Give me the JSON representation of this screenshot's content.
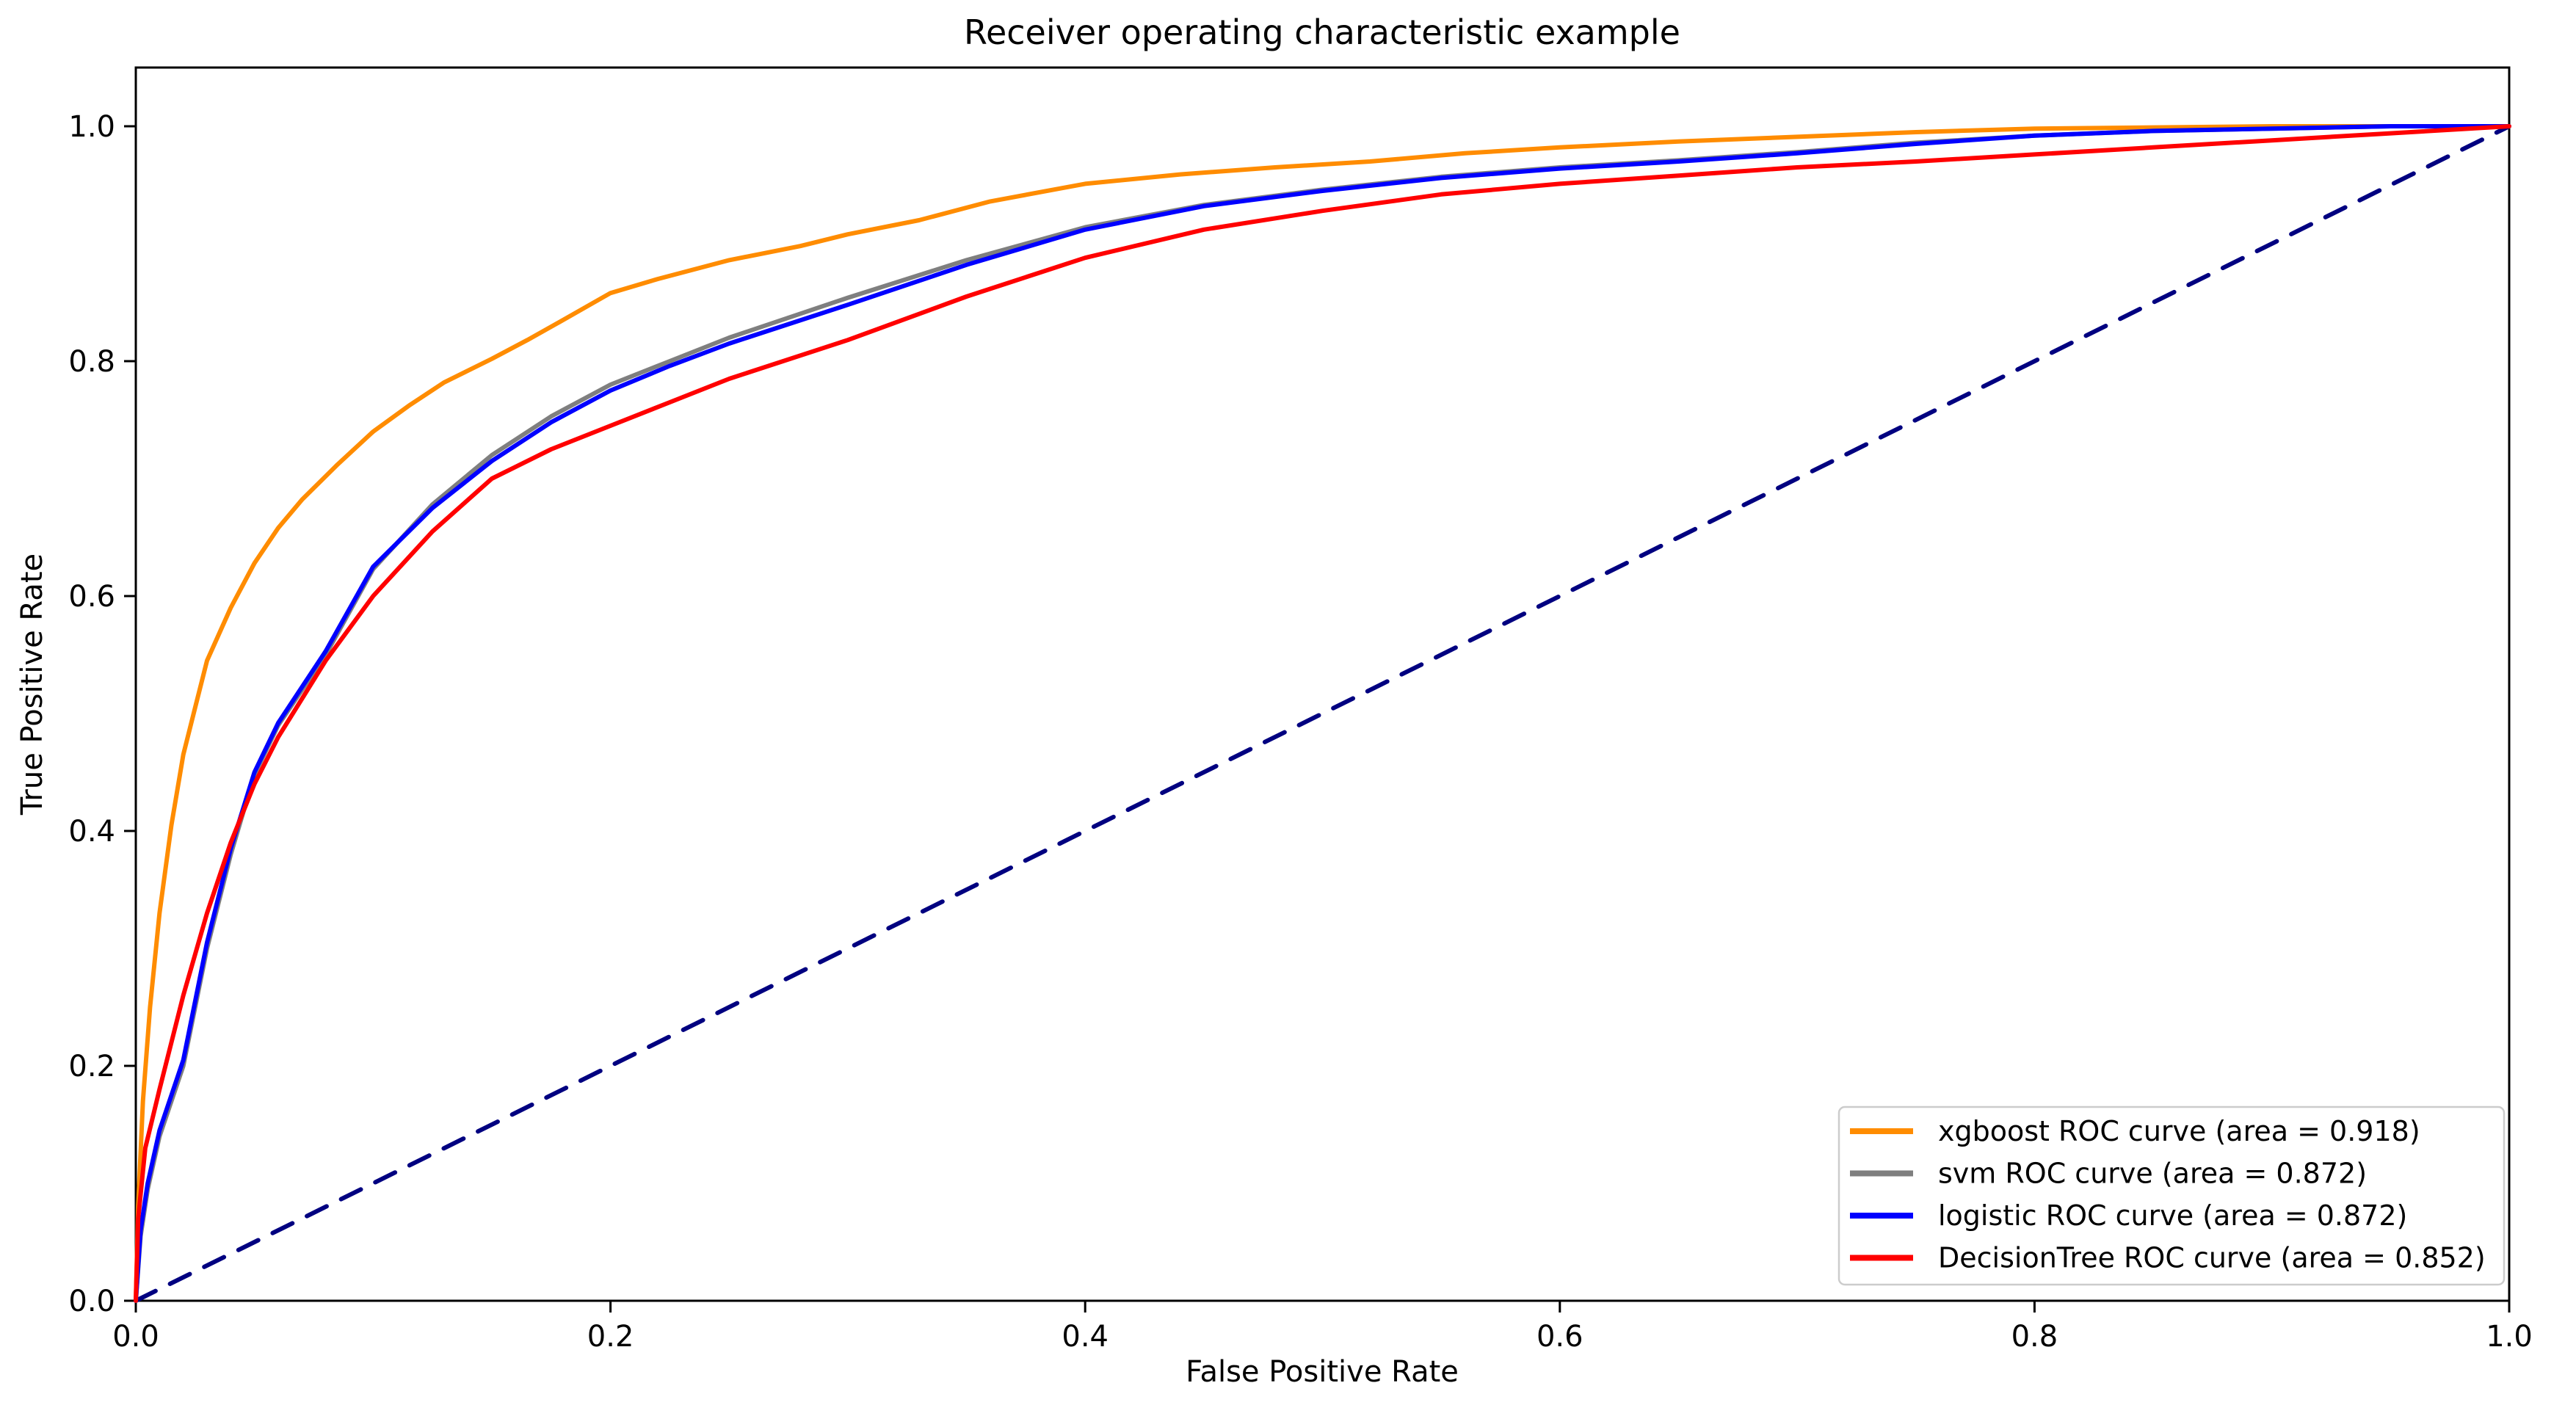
{
  "figure": {
    "title": "Receiver operating characteristic example",
    "xlabel": "False Positive Rate",
    "ylabel": "True Positive Rate"
  },
  "chart_data": {
    "type": "line",
    "title": "Receiver operating characteristic example",
    "xlabel": "False Positive Rate",
    "ylabel": "True Positive Rate",
    "xlim": [
      0.0,
      1.0
    ],
    "ylim": [
      0.0,
      1.05
    ],
    "grid": false,
    "legend_position": "lower right",
    "x_tick_labels": [
      "0.0",
      "0.2",
      "0.4",
      "0.6",
      "0.8",
      "1.0"
    ],
    "y_tick_labels": [
      "0.0",
      "0.2",
      "0.4",
      "0.6",
      "0.8",
      "1.0"
    ],
    "series": [
      {
        "id": "xgboost",
        "label": "xgboost ROC curve (area = 0.918)",
        "color": "#ff8c00",
        "auc": 0.918,
        "points": [
          [
            0,
            0
          ],
          [
            0.001,
            0.08
          ],
          [
            0.003,
            0.17
          ],
          [
            0.006,
            0.25
          ],
          [
            0.01,
            0.33
          ],
          [
            0.015,
            0.405
          ],
          [
            0.02,
            0.465
          ],
          [
            0.025,
            0.505
          ],
          [
            0.03,
            0.545
          ],
          [
            0.04,
            0.59
          ],
          [
            0.05,
            0.628
          ],
          [
            0.06,
            0.658
          ],
          [
            0.07,
            0.682
          ],
          [
            0.085,
            0.712
          ],
          [
            0.1,
            0.74
          ],
          [
            0.115,
            0.762
          ],
          [
            0.13,
            0.782
          ],
          [
            0.15,
            0.802
          ],
          [
            0.165,
            0.818
          ],
          [
            0.18,
            0.835
          ],
          [
            0.2,
            0.858
          ],
          [
            0.22,
            0.87
          ],
          [
            0.25,
            0.886
          ],
          [
            0.28,
            0.898
          ],
          [
            0.3,
            0.908
          ],
          [
            0.33,
            0.92
          ],
          [
            0.36,
            0.936
          ],
          [
            0.4,
            0.951
          ],
          [
            0.44,
            0.959
          ],
          [
            0.48,
            0.965
          ],
          [
            0.52,
            0.97
          ],
          [
            0.56,
            0.977
          ],
          [
            0.6,
            0.982
          ],
          [
            0.65,
            0.987
          ],
          [
            0.7,
            0.991
          ],
          [
            0.75,
            0.995
          ],
          [
            0.8,
            0.998
          ],
          [
            0.85,
            0.999
          ],
          [
            0.9,
            1.0
          ],
          [
            1.0,
            1.0
          ]
        ]
      },
      {
        "id": "svm",
        "label": "svm ROC curve (area = 0.872)",
        "color": "#7f7f7f",
        "auc": 0.872,
        "points": [
          [
            0,
            0
          ],
          [
            0.002,
            0.055
          ],
          [
            0.005,
            0.095
          ],
          [
            0.01,
            0.14
          ],
          [
            0.02,
            0.2
          ],
          [
            0.03,
            0.3
          ],
          [
            0.04,
            0.38
          ],
          [
            0.05,
            0.448
          ],
          [
            0.06,
            0.49
          ],
          [
            0.08,
            0.55
          ],
          [
            0.1,
            0.623
          ],
          [
            0.125,
            0.678
          ],
          [
            0.15,
            0.72
          ],
          [
            0.175,
            0.753
          ],
          [
            0.2,
            0.78
          ],
          [
            0.225,
            0.8
          ],
          [
            0.25,
            0.82
          ],
          [
            0.3,
            0.854
          ],
          [
            0.35,
            0.886
          ],
          [
            0.4,
            0.914
          ],
          [
            0.45,
            0.933
          ],
          [
            0.5,
            0.946
          ],
          [
            0.55,
            0.957
          ],
          [
            0.6,
            0.965
          ],
          [
            0.65,
            0.971
          ],
          [
            0.7,
            0.978
          ],
          [
            0.75,
            0.986
          ],
          [
            0.8,
            0.992
          ],
          [
            0.85,
            0.996
          ],
          [
            0.9,
            0.998
          ],
          [
            0.95,
            1.0
          ],
          [
            1,
            1
          ]
        ]
      },
      {
        "id": "logistic",
        "label": "logistic ROC curve (area = 0.872)",
        "color": "#0000ff",
        "auc": 0.872,
        "points": [
          [
            0,
            0
          ],
          [
            0.002,
            0.06
          ],
          [
            0.005,
            0.1
          ],
          [
            0.01,
            0.145
          ],
          [
            0.02,
            0.205
          ],
          [
            0.03,
            0.305
          ],
          [
            0.04,
            0.385
          ],
          [
            0.05,
            0.45
          ],
          [
            0.06,
            0.492
          ],
          [
            0.08,
            0.553
          ],
          [
            0.1,
            0.625
          ],
          [
            0.125,
            0.675
          ],
          [
            0.15,
            0.715
          ],
          [
            0.175,
            0.748
          ],
          [
            0.2,
            0.775
          ],
          [
            0.225,
            0.796
          ],
          [
            0.25,
            0.815
          ],
          [
            0.3,
            0.848
          ],
          [
            0.35,
            0.882
          ],
          [
            0.4,
            0.912
          ],
          [
            0.45,
            0.932
          ],
          [
            0.5,
            0.945
          ],
          [
            0.55,
            0.956
          ],
          [
            0.6,
            0.964
          ],
          [
            0.65,
            0.97
          ],
          [
            0.7,
            0.977
          ],
          [
            0.75,
            0.985
          ],
          [
            0.8,
            0.992
          ],
          [
            0.85,
            0.996
          ],
          [
            0.9,
            0.998
          ],
          [
            0.95,
            1.0
          ],
          [
            1,
            1
          ]
        ]
      },
      {
        "id": "decision-tree",
        "label": "DecisionTree ROC curve (area = 0.852)",
        "color": "#ff0000",
        "auc": 0.852,
        "points": [
          [
            0,
            0
          ],
          [
            0.001,
            0.07
          ],
          [
            0.004,
            0.13
          ],
          [
            0.01,
            0.18
          ],
          [
            0.02,
            0.26
          ],
          [
            0.03,
            0.33
          ],
          [
            0.04,
            0.39
          ],
          [
            0.05,
            0.44
          ],
          [
            0.06,
            0.48
          ],
          [
            0.08,
            0.545
          ],
          [
            0.1,
            0.6
          ],
          [
            0.125,
            0.655
          ],
          [
            0.15,
            0.7
          ],
          [
            0.175,
            0.725
          ],
          [
            0.2,
            0.745
          ],
          [
            0.225,
            0.765
          ],
          [
            0.25,
            0.785
          ],
          [
            0.3,
            0.818
          ],
          [
            0.35,
            0.855
          ],
          [
            0.4,
            0.888
          ],
          [
            0.45,
            0.912
          ],
          [
            0.5,
            0.928
          ],
          [
            0.55,
            0.942
          ],
          [
            0.6,
            0.951
          ],
          [
            0.65,
            0.958
          ],
          [
            0.7,
            0.965
          ],
          [
            0.75,
            0.97
          ],
          [
            0.8,
            0.976
          ],
          [
            0.85,
            0.982
          ],
          [
            0.9,
            0.988
          ],
          [
            0.95,
            0.994
          ],
          [
            1,
            1
          ]
        ]
      }
    ],
    "diagonal": {
      "label": "chance line",
      "style": "dashed",
      "color": "#000080",
      "from": [
        0,
        0
      ],
      "to": [
        1,
        1
      ]
    }
  }
}
